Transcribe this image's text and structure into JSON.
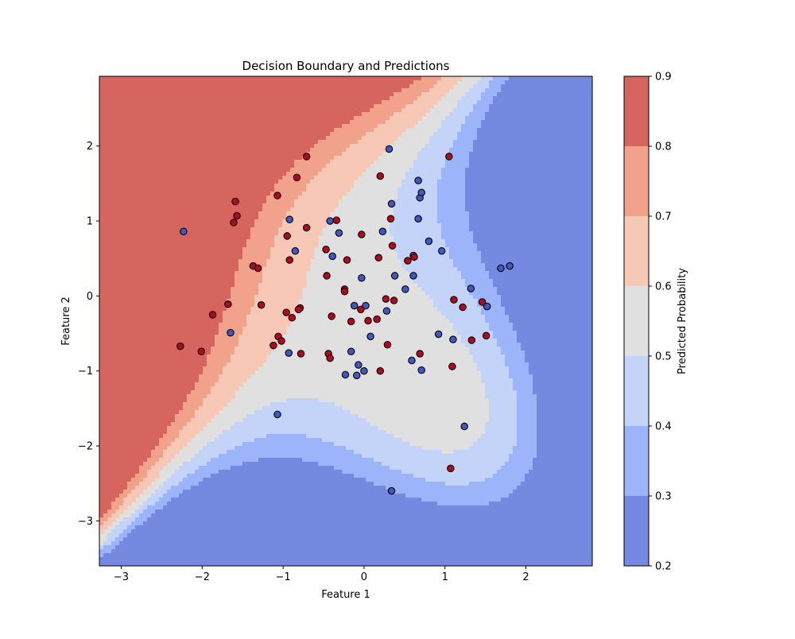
{
  "chart_data": {
    "type": "scatter",
    "title": "Decision Boundary and Predictions",
    "xlabel": "Feature 1",
    "ylabel": "Feature 2",
    "xlim": [
      -3.27,
      2.82
    ],
    "ylim": [
      -3.6,
      2.93
    ],
    "grid": false,
    "x_ticks": [
      {
        "value": -3,
        "label": "−3"
      },
      {
        "value": -2,
        "label": "−2"
      },
      {
        "value": -1,
        "label": "−1"
      },
      {
        "value": 0,
        "label": "0"
      },
      {
        "value": 1,
        "label": "1"
      },
      {
        "value": 2,
        "label": "2"
      }
    ],
    "y_ticks": [
      {
        "value": -3,
        "label": "−3"
      },
      {
        "value": -2,
        "label": "−2"
      },
      {
        "value": -1,
        "label": "−1"
      },
      {
        "value": 0,
        "label": "0"
      },
      {
        "value": 1,
        "label": "1"
      },
      {
        "value": 2,
        "label": "2"
      }
    ],
    "colorbar": {
      "label": "Predicted Probability",
      "levels": [
        0.2,
        0.3,
        0.4,
        0.5,
        0.6,
        0.7,
        0.8,
        0.9
      ],
      "tick_labels": [
        "0.2",
        "0.3",
        "0.4",
        "0.5",
        "0.6",
        "0.7",
        "0.8",
        "0.9"
      ],
      "colors": [
        "#7489e0",
        "#9bb4fa",
        "#c3d4f8",
        "#e0e0e0",
        "#f7c8b5",
        "#f2a18a",
        "#d6645f"
      ]
    },
    "point_colors": {
      "class_0": "#4157c2",
      "class_1": "#b3061f"
    },
    "points_class_0": [
      [
        -2.23,
        0.86
      ],
      [
        -1.65,
        -0.49
      ],
      [
        -0.92,
        1.02
      ],
      [
        -0.85,
        0.6
      ],
      [
        -0.93,
        -0.76
      ],
      [
        -1.07,
        -1.58
      ],
      [
        -0.42,
        1.0
      ],
      [
        -0.39,
        0.53
      ],
      [
        -0.31,
        0.84
      ],
      [
        -0.12,
        -0.13
      ],
      [
        0.02,
        -0.13
      ],
      [
        -0.03,
        0.24
      ],
      [
        -0.16,
        -0.74
      ],
      [
        -0.23,
        -1.05
      ],
      [
        -0.07,
        -0.92
      ],
      [
        -0.09,
        -1.06
      ],
      [
        0.0,
        -1.0
      ],
      [
        0.08,
        -0.54
      ],
      [
        0.31,
        1.96
      ],
      [
        0.34,
        1.23
      ],
      [
        0.23,
        0.86
      ],
      [
        0.38,
        0.27
      ],
      [
        0.28,
        -0.2
      ],
      [
        0.51,
        0.09
      ],
      [
        0.61,
        0.54
      ],
      [
        0.61,
        0.27
      ],
      [
        0.67,
        1.54
      ],
      [
        0.69,
        1.31
      ],
      [
        0.71,
        1.38
      ],
      [
        0.67,
        1.03
      ],
      [
        0.8,
        0.73
      ],
      [
        0.96,
        0.6
      ],
      [
        0.59,
        -0.86
      ],
      [
        0.71,
        -0.99
      ],
      [
        0.92,
        -0.51
      ],
      [
        1.1,
        -0.58
      ],
      [
        1.32,
        0.1
      ],
      [
        1.52,
        -0.14
      ],
      [
        1.69,
        0.37
      ],
      [
        1.8,
        0.4
      ],
      [
        1.24,
        -1.74
      ],
      [
        0.34,
        -2.6
      ]
    ],
    "points_class_1": [
      [
        -2.27,
        -0.67
      ],
      [
        -2.01,
        -0.74
      ],
      [
        -1.87,
        -0.25
      ],
      [
        -1.68,
        -0.11
      ],
      [
        -1.59,
        1.26
      ],
      [
        -1.57,
        1.07
      ],
      [
        -1.61,
        0.98
      ],
      [
        -1.37,
        0.4
      ],
      [
        -1.31,
        0.37
      ],
      [
        -1.27,
        -0.12
      ],
      [
        -1.07,
        1.34
      ],
      [
        -0.71,
        1.86
      ],
      [
        -0.83,
        1.58
      ],
      [
        -0.95,
        0.8
      ],
      [
        -0.71,
        0.91
      ],
      [
        -0.92,
        0.48
      ],
      [
        -0.96,
        -0.22
      ],
      [
        -0.89,
        -0.29
      ],
      [
        -0.79,
        -0.16
      ],
      [
        -0.81,
        -0.18
      ],
      [
        -1.06,
        -0.54
      ],
      [
        -1.02,
        -0.6
      ],
      [
        -1.12,
        -0.66
      ],
      [
        -0.78,
        -0.77
      ],
      [
        -0.47,
        0.62
      ],
      [
        -0.46,
        0.27
      ],
      [
        -0.34,
        1.01
      ],
      [
        -0.21,
        0.48
      ],
      [
        -0.24,
        0.09
      ],
      [
        -0.24,
        0.06
      ],
      [
        -0.4,
        -0.27
      ],
      [
        -0.16,
        -0.34
      ],
      [
        -0.44,
        -0.77
      ],
      [
        -0.42,
        -0.83
      ],
      [
        -0.03,
        0.82
      ],
      [
        -0.04,
        -0.18
      ],
      [
        0.05,
        -0.33
      ],
      [
        0.16,
        -0.31
      ],
      [
        0.18,
        0.51
      ],
      [
        0.2,
        1.6
      ],
      [
        0.33,
        1.03
      ],
      [
        0.35,
        0.67
      ],
      [
        0.27,
        -0.04
      ],
      [
        0.37,
        -0.06
      ],
      [
        0.29,
        -0.65
      ],
      [
        0.2,
        -1.0
      ],
      [
        0.54,
        0.47
      ],
      [
        0.62,
        0.52
      ],
      [
        0.69,
        -0.77
      ],
      [
        1.05,
        1.86
      ],
      [
        1.11,
        -0.05
      ],
      [
        1.22,
        -0.15
      ],
      [
        1.46,
        -0.08
      ],
      [
        1.51,
        -0.53
      ],
      [
        1.33,
        -0.59
      ],
      [
        1.09,
        -0.94
      ],
      [
        1.07,
        -2.3
      ]
    ]
  }
}
